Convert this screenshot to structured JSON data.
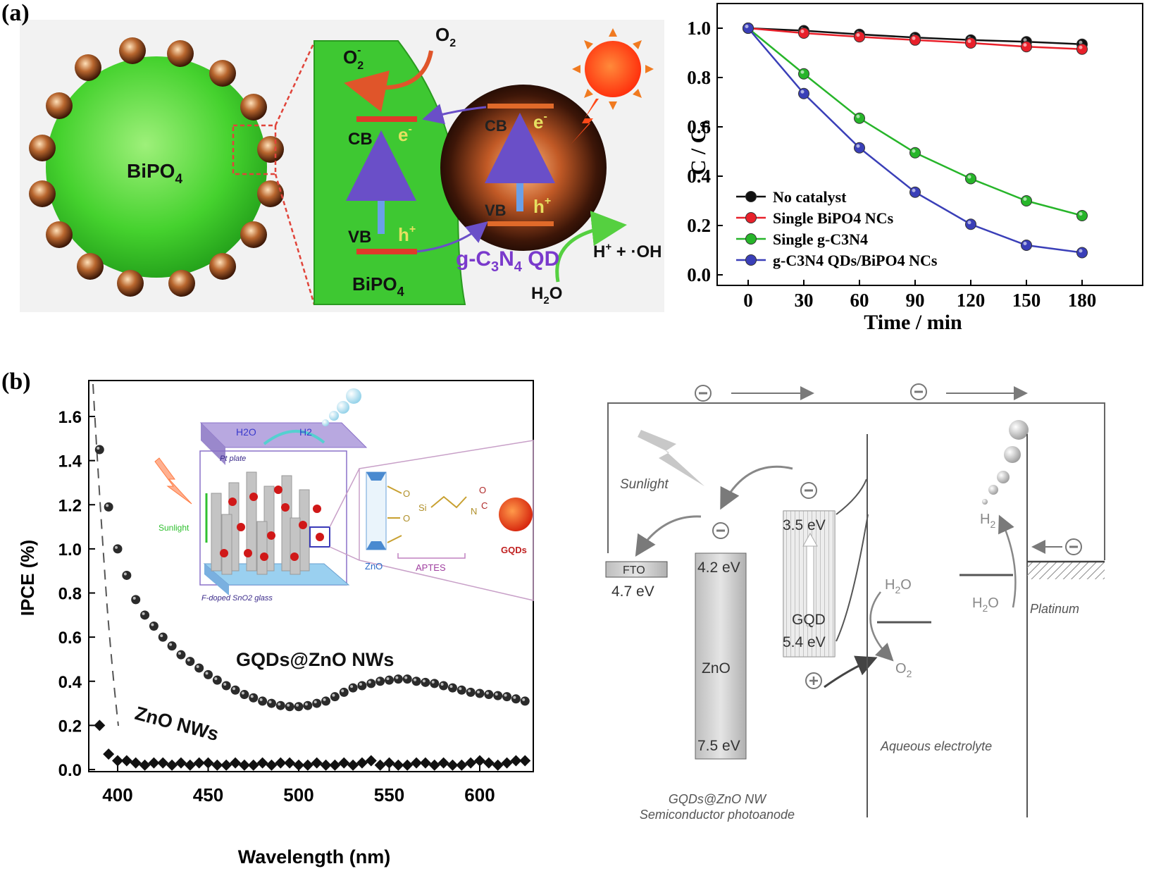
{
  "panel_labels": {
    "a": "(a)",
    "b": "(b)"
  },
  "schematic_a": {
    "sphere_label": "BiPO4",
    "sphere_label_sub": {
      "base": "BiPO",
      "sub": "4"
    },
    "slab_label": {
      "base": "BiPO",
      "sub": "4"
    },
    "cb": "CB",
    "vb": "VB",
    "electron": "e",
    "hole": "h",
    "superoxide": "O",
    "oxygen": {
      "base": "O",
      "sub": "2"
    },
    "qd_label": "g-C3N4 QD",
    "h_oh": "H+ + ·OH",
    "water": {
      "base": "H",
      "sub": "2",
      "tail": "O"
    }
  },
  "colors": {
    "no_catalyst": "#111111",
    "single_bipo4": "#e8202a",
    "single_gc3n4": "#27b52a",
    "composite": "#3a3fb8",
    "sphere": "#3fcf2c",
    "band_line": "#e03a2a",
    "ipce_marker": "#2b2b2b"
  },
  "chart_data": [
    {
      "type": "line",
      "xlabel": "Time / min",
      "ylabel": "C / C₀",
      "xlim": [
        0,
        180
      ],
      "ylim": [
        0.0,
        1.0
      ],
      "x_ticks": [
        "0",
        "30",
        "60",
        "90",
        "120",
        "150",
        "180"
      ],
      "y_ticks": [
        "0.0",
        "0.2",
        "0.4",
        "0.6",
        "0.8",
        "1.0"
      ],
      "legend_position": "bottom-left",
      "x": [
        0,
        30,
        60,
        90,
        120,
        150,
        180
      ],
      "series": [
        {
          "name": "No catalyst",
          "values": [
            1.0,
            0.99,
            0.975,
            0.962,
            0.952,
            0.945,
            0.935
          ]
        },
        {
          "name": "Single BiPO4 NCs",
          "values": [
            1.0,
            0.98,
            0.965,
            0.952,
            0.94,
            0.925,
            0.915
          ]
        },
        {
          "name": "Single g-C3N4",
          "values": [
            1.0,
            0.815,
            0.635,
            0.495,
            0.39,
            0.3,
            0.24
          ]
        },
        {
          "name": "g-C3N4 QDs/BiPO4 NCs",
          "values": [
            1.0,
            0.735,
            0.515,
            0.335,
            0.205,
            0.12,
            0.09
          ]
        }
      ]
    },
    {
      "type": "scatter",
      "xlabel": "Wavelength (nm)",
      "ylabel": "IPCE (%)",
      "xlim": [
        385,
        625
      ],
      "ylim": [
        -0.1,
        1.75
      ],
      "x_ticks": [
        "400",
        "450",
        "500",
        "550",
        "600"
      ],
      "y_ticks": [
        "0.0",
        "0.2",
        "0.4",
        "0.6",
        "0.8",
        "1.0",
        "1.2",
        "1.4",
        "1.6"
      ],
      "series": [
        {
          "name": "GQDs@ZnO NWs",
          "x": [
            390,
            395,
            400,
            405,
            410,
            415,
            420,
            425,
            430,
            435,
            440,
            445,
            450,
            455,
            460,
            465,
            470,
            475,
            480,
            485,
            490,
            495,
            500,
            505,
            510,
            515,
            520,
            525,
            530,
            535,
            540,
            545,
            550,
            555,
            560,
            565,
            570,
            575,
            580,
            585,
            590,
            595,
            600,
            605,
            610,
            615,
            620,
            625
          ],
          "values": [
            1.45,
            1.19,
            1.0,
            0.88,
            0.77,
            0.7,
            0.65,
            0.6,
            0.56,
            0.52,
            0.49,
            0.46,
            0.43,
            0.405,
            0.38,
            0.36,
            0.34,
            0.325,
            0.31,
            0.3,
            0.29,
            0.285,
            0.285,
            0.29,
            0.3,
            0.31,
            0.33,
            0.35,
            0.37,
            0.38,
            0.39,
            0.4,
            0.405,
            0.41,
            0.41,
            0.4,
            0.395,
            0.39,
            0.38,
            0.37,
            0.36,
            0.35,
            0.345,
            0.34,
            0.335,
            0.33,
            0.32,
            0.31
          ]
        },
        {
          "name": "ZnO NWs",
          "x": [
            390,
            395,
            400,
            405,
            410,
            415,
            420,
            425,
            430,
            435,
            440,
            445,
            450,
            455,
            460,
            465,
            470,
            475,
            480,
            485,
            490,
            495,
            500,
            505,
            510,
            515,
            520,
            525,
            530,
            535,
            540,
            545,
            550,
            555,
            560,
            565,
            570,
            575,
            580,
            585,
            590,
            595,
            600,
            605,
            610,
            615,
            620,
            625
          ],
          "values": [
            0.2,
            0.07,
            0.04,
            0.04,
            0.03,
            0.02,
            0.03,
            0.03,
            0.02,
            0.03,
            0.02,
            0.03,
            0.03,
            0.02,
            0.02,
            0.03,
            0.02,
            0.02,
            0.03,
            0.02,
            0.03,
            0.03,
            0.02,
            0.02,
            0.03,
            0.02,
            0.02,
            0.03,
            0.02,
            0.03,
            0.04,
            0.02,
            0.03,
            0.02,
            0.02,
            0.03,
            0.03,
            0.02,
            0.03,
            0.02,
            0.02,
            0.03,
            0.04,
            0.03,
            0.02,
            0.03,
            0.04,
            0.04
          ]
        }
      ]
    }
  ],
  "inset_b": {
    "h2o": "H2O",
    "h2": "H2",
    "pt_plate": "Pt plate",
    "sunlight": "Sunlight",
    "electron": "e-",
    "glass": "F-doped SnO2 glass",
    "zno": "ZnO",
    "aptes": "APTES",
    "gqds": "GQDs"
  },
  "band_diagram": {
    "sunlight": "Sunlight",
    "fto": "FTO",
    "fto_level": "4.7 eV",
    "zno_top": "4.2 eV",
    "zno_label": "ZnO",
    "zno_bottom": "7.5 eV",
    "gqd_top": "3.5 eV",
    "gqd_label": "GQD",
    "gqd_bottom": "5.4 eV",
    "water_left": "H2O",
    "oxygen": "O2",
    "water_right": "H2O",
    "hydrogen": "H2",
    "platinum": "Platinum",
    "electrolyte": "Aqueous electrolyte",
    "photoanode_line1": "GQDs@ZnO NW",
    "photoanode_line2": "Semiconductor photoanode"
  }
}
